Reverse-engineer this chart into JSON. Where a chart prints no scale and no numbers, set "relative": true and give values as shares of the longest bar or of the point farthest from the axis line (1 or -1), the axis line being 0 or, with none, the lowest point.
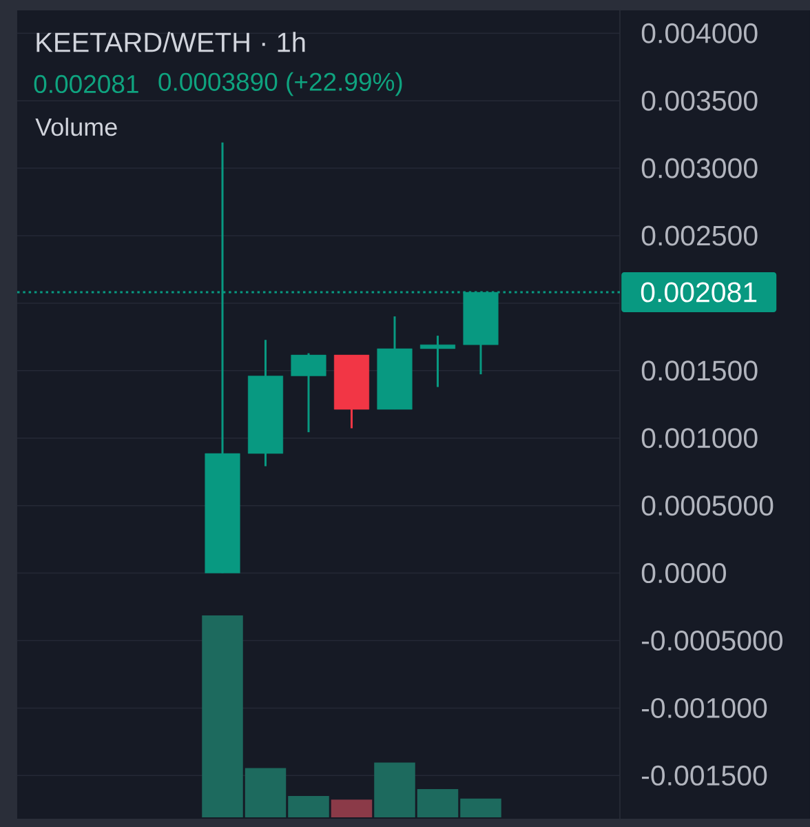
{
  "chart_data": [
    {
      "type": "candlestick",
      "title": "KEETARD/WETH · 1h",
      "annotations": [
        "0.002081",
        "0.0003890 (+22.99%)"
      ],
      "categories": [
        null,
        null,
        null,
        null,
        null,
        null,
        null
      ],
      "ohlc": [
        [
          0,
          0.00319,
          0,
          0.000886
        ],
        [
          0.000886,
          0.001728,
          0.000792,
          0.001461
        ],
        [
          0.001461,
          0.001629,
          0.001044,
          0.001616
        ],
        [
          0.001616,
          0.001616,
          0.001073,
          0.001213
        ],
        [
          0.001213,
          0.001902,
          0.001213,
          0.001663
        ],
        [
          0.001663,
          0.001759,
          0.001379,
          0.001692
        ],
        [
          0.001692,
          0.002081,
          0.001473,
          0.002081
        ]
      ],
      "colors": [
        "#089981",
        "#089981",
        "#089981",
        "#f23645",
        "#089981",
        "#089981",
        "#089981"
      ],
      "ylim": [
        -0.00182,
        0.00417
      ],
      "yticks": [
        {
          "value": -0.0015,
          "label": "-0.001500"
        },
        {
          "value": -0.001,
          "label": "-0.001000"
        },
        {
          "value": -0.0005,
          "label": "-0.0005000"
        },
        {
          "value": 0,
          "label": "0.0000"
        },
        {
          "value": 0.0005,
          "label": "0.0005000"
        },
        {
          "value": 0.001,
          "label": "0.001000"
        },
        {
          "value": 0.0015,
          "label": "0.001500"
        },
        {
          "value": 0.002,
          "label": null
        },
        {
          "value": 0.0025,
          "label": "0.002500"
        },
        {
          "value": 0.003,
          "label": "0.003000"
        },
        {
          "value": 0.0035,
          "label": "0.003500"
        },
        {
          "value": 0.004,
          "label": "0.004000"
        }
      ],
      "grid": "y",
      "tick_labels": "y",
      "ref_lines": [
        {
          "axis": "y",
          "value": 0.002081,
          "label": "0.002081",
          "color": "#089981",
          "line_style": "dotted"
        }
      ]
    },
    {
      "type": "bar",
      "title": "Volume",
      "categories": [
        null,
        null,
        null,
        null,
        null,
        null,
        null
      ],
      "values": [
        1,
        0.244,
        0.106,
        0.088,
        0.271,
        0.14,
        0.093
      ],
      "colors": [
        "#1d6a5e",
        "#1d6a5e",
        "#1d6a5e",
        "#8b3a48",
        "#1d6a5e",
        "#1d6a5e",
        "#1d6a5e"
      ],
      "relative": true
    }
  ]
}
